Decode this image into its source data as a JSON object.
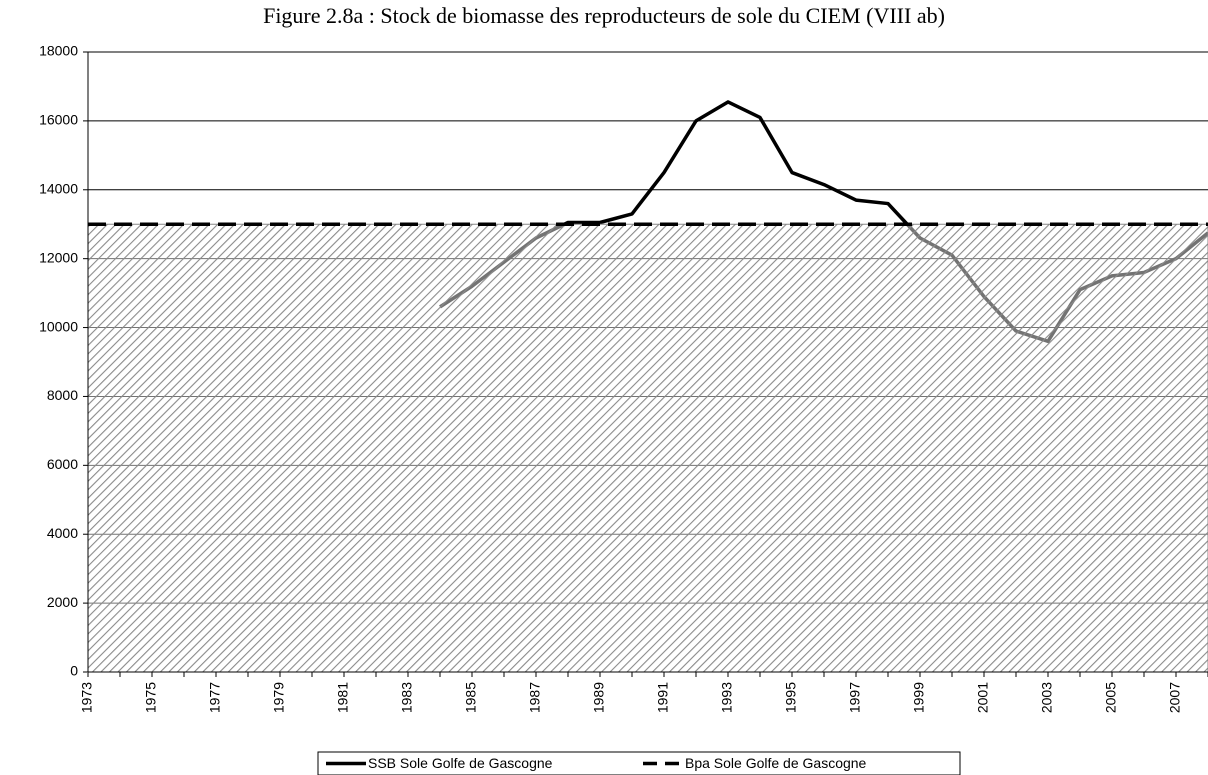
{
  "chart_data": {
    "type": "line",
    "title": "Figure 2.8a : Stock de biomasse des reproducteurs de sole du CIEM (VIII ab)",
    "categories": [
      "1973",
      null,
      "1975",
      null,
      "1977",
      null,
      "1979",
      null,
      "1981",
      null,
      "1983",
      null,
      "1985",
      null,
      "1987",
      null,
      "1989",
      null,
      "1991",
      null,
      "1993",
      null,
      "1995",
      null,
      "1997",
      null,
      "1999",
      null,
      "2001",
      null,
      "2003",
      null,
      "2005",
      null,
      "2007",
      null
    ],
    "series": [
      {
        "name": "SSB Sole Golfe de Gascogne",
        "color": "#000000",
        "line_style": "solid",
        "values": [
          null,
          null,
          null,
          null,
          null,
          null,
          null,
          null,
          null,
          null,
          null,
          10600,
          11200,
          11900,
          12600,
          13050,
          13050,
          13300,
          14500,
          16000,
          16550,
          16100,
          14500,
          14150,
          13700,
          13600,
          12600,
          12100,
          10900,
          9900,
          9600,
          11100,
          11500,
          11600,
          12000,
          12750
        ]
      },
      {
        "name": "Bpa Sole Golfe de Gascogne",
        "color": "#000000",
        "line_style": "dashed",
        "area": true,
        "values": [
          13000,
          13000,
          13000,
          13000,
          13000,
          13000,
          13000,
          13000,
          13000,
          13000,
          13000,
          13000,
          13000,
          13000,
          13000,
          13000,
          13000,
          13000,
          13000,
          13000,
          13000,
          13000,
          13000,
          13000,
          13000,
          13000,
          13000,
          13000,
          13000,
          13000,
          13000,
          13000,
          13000,
          13000,
          13000,
          13000
        ]
      }
    ],
    "ylim": [
      0,
      18000
    ],
    "yticks": [
      0,
      2000,
      4000,
      6000,
      8000,
      10000,
      12000,
      14000,
      16000,
      18000
    ],
    "grid": true,
    "legend": "bottom"
  }
}
